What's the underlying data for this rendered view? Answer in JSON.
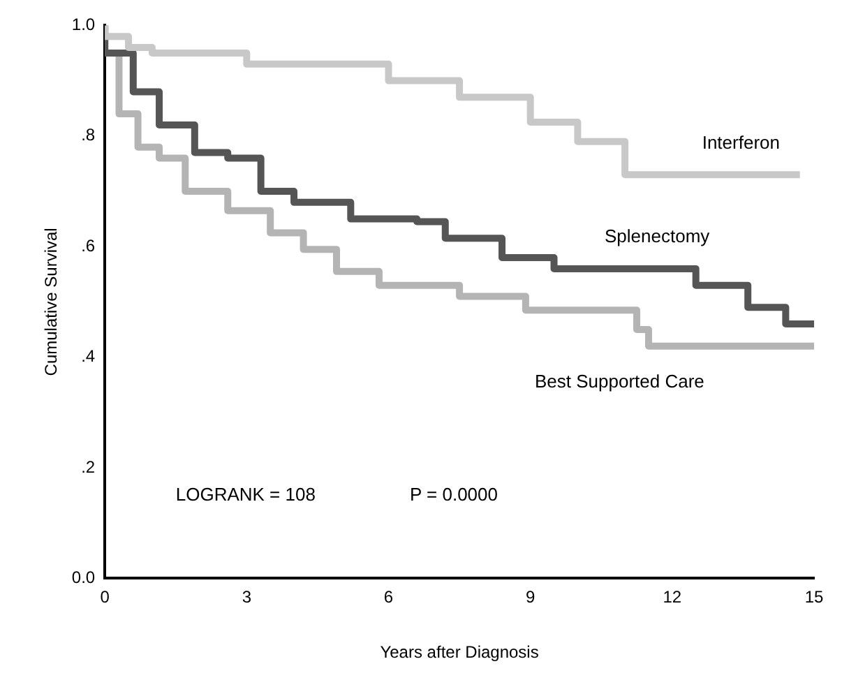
{
  "chart_data": {
    "type": "step",
    "xlabel": "Years after Diagnosis",
    "ylabel": "Cumulative Survival",
    "xlim": [
      0,
      15
    ],
    "xticks": [
      0,
      3,
      6,
      9,
      12,
      15
    ],
    "ylim": [
      0,
      1
    ],
    "yticks": [
      {
        "value": 0,
        "label": "0.0"
      },
      {
        "value": 0.2,
        "label": ".2"
      },
      {
        "value": 0.4,
        "label": ".4"
      },
      {
        "value": 0.6,
        "label": ".6"
      },
      {
        "value": 0.8,
        "label": ".8"
      },
      {
        "value": 1,
        "label": "1.0"
      }
    ],
    "grid": false,
    "legend": false,
    "marker": "none",
    "line_style": "solid",
    "series": [
      {
        "name": "Interferon",
        "color": "#c8c8c8",
        "x": [
          0,
          0.5,
          1,
          3,
          6,
          7.5,
          9,
          10,
          11,
          12,
          14.7
        ],
        "values": [
          1,
          0.98,
          0.96,
          0.95,
          0.93,
          0.9,
          0.87,
          0.825,
          0.79,
          0.73,
          0.73
        ]
      },
      {
        "name": "Splenectomy",
        "color": "#555555",
        "x": [
          0,
          0.6,
          1.15,
          1.9,
          2.6,
          3.3,
          4,
          5.2,
          6.6,
          7.2,
          8.4,
          9.5,
          10.4,
          12.5,
          13.6,
          14.4,
          15
        ],
        "values": [
          1,
          0.95,
          0.88,
          0.82,
          0.77,
          0.76,
          0.7,
          0.68,
          0.65,
          0.645,
          0.615,
          0.58,
          0.56,
          0.56,
          0.53,
          0.49,
          0.46
        ]
      },
      {
        "name": "Best Supported Care",
        "color": "#b4b4b4",
        "x": [
          0,
          0.3,
          0.7,
          1.15,
          1.7,
          2.6,
          3.5,
          4.2,
          4.9,
          5.8,
          7.5,
          8.9,
          9.8,
          11.25,
          11.5,
          11.7,
          15
        ],
        "values": [
          1,
          0.95,
          0.84,
          0.78,
          0.76,
          0.7,
          0.665,
          0.625,
          0.595,
          0.555,
          0.53,
          0.51,
          0.485,
          0.485,
          0.45,
          0.42,
          0.42
        ]
      }
    ],
    "annotations": [
      "LOGRANK = 108",
      "P = 0.0000"
    ]
  }
}
